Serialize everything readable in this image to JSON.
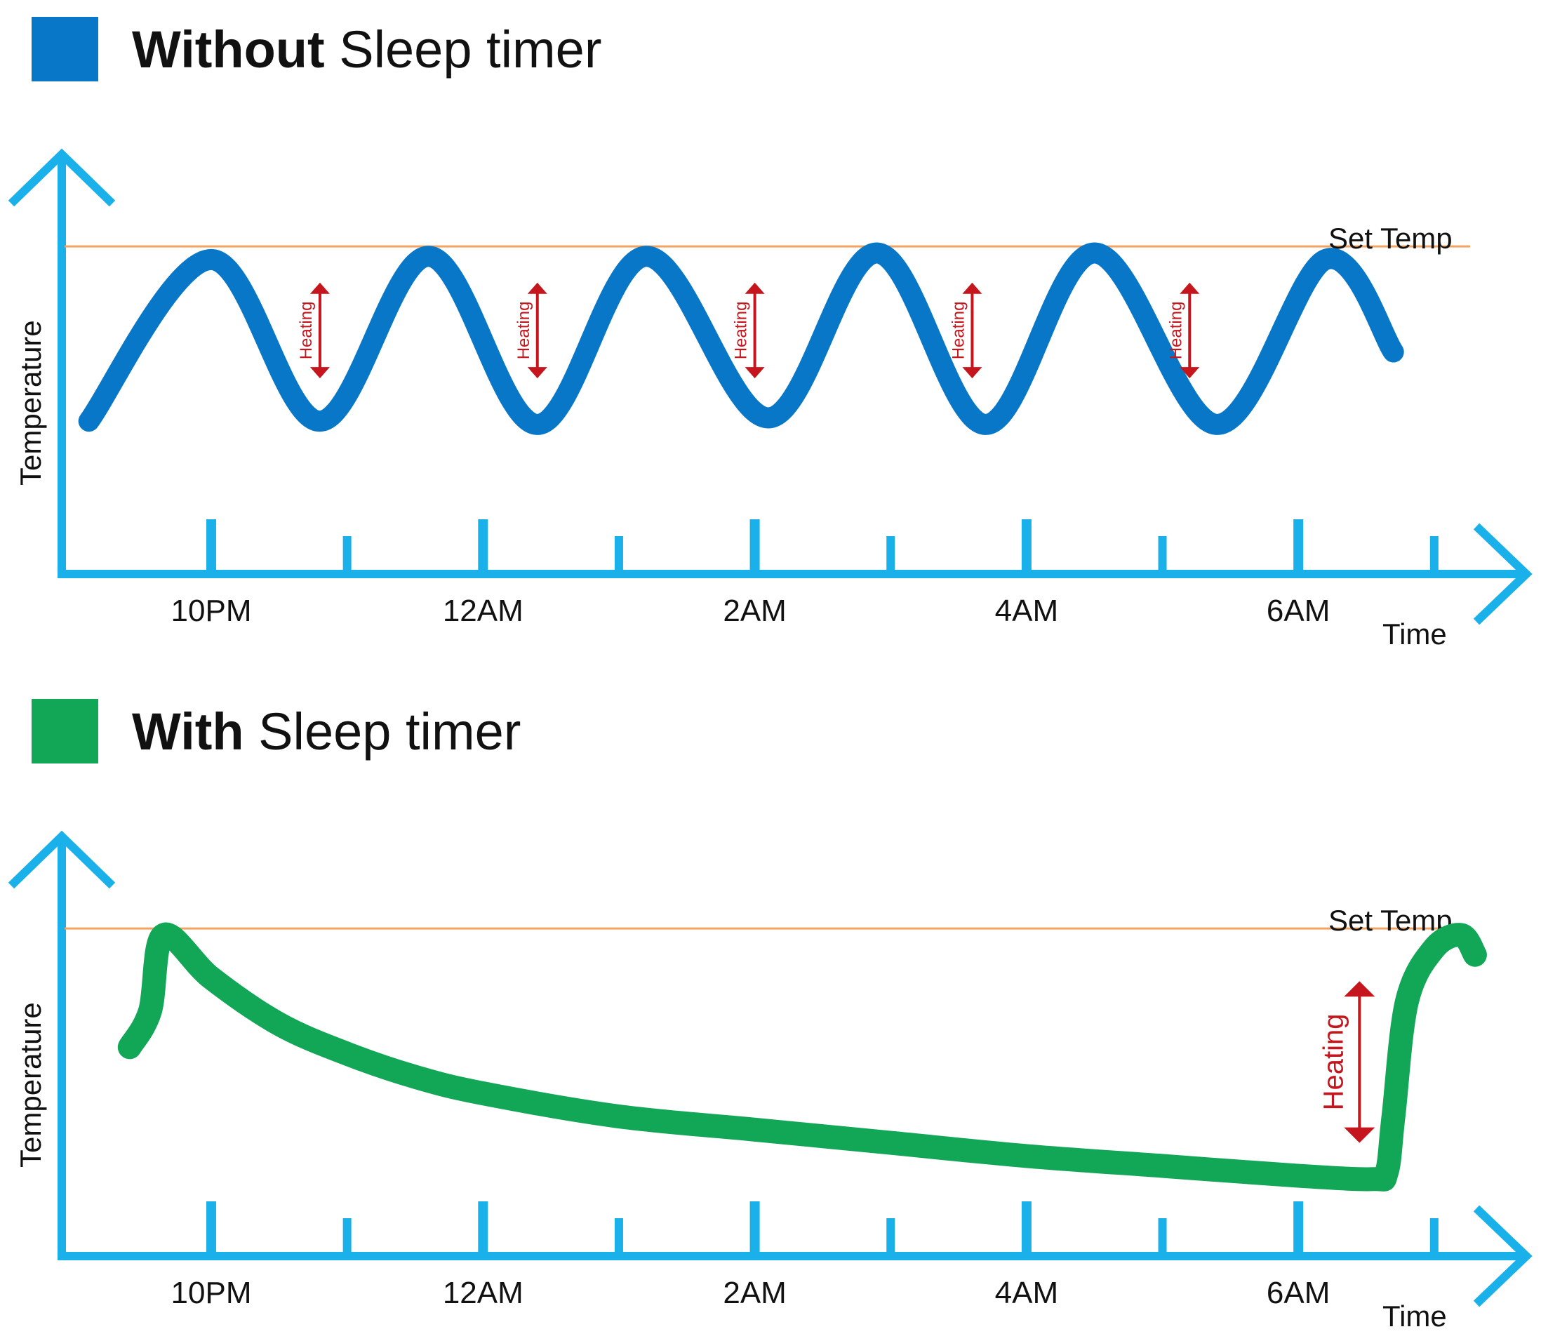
{
  "colors": {
    "axis": "#1ab0ea",
    "set_temp_line": "#f4a460",
    "without_series": "#0877c8",
    "with_series": "#12a657",
    "heating_arrow": "#c4161c",
    "text": "#111111"
  },
  "chart_data": [
    {
      "type": "line",
      "legend_color": "#0877c8",
      "title_bold": "Without",
      "title_rest": " Sleep timer",
      "xlabel": "Time",
      "ylabel": "Temperature",
      "x_ticks": [
        "10PM",
        "12AM",
        "2AM",
        "4AM",
        "6AM"
      ],
      "x_range": [
        20.9,
        31.6
      ],
      "y_range": [
        0,
        10
      ],
      "set_temp_label": "Set Temp",
      "set_temp": 8.7,
      "series": [
        {
          "color": "#0877c8",
          "x": [
            21.1,
            22.0,
            22.8,
            23.6,
            24.4,
            25.2,
            26.1,
            26.9,
            27.7,
            28.5,
            29.4,
            30.2,
            30.7
          ],
          "y": [
            3.4,
            8.3,
            3.4,
            8.4,
            3.3,
            8.4,
            3.5,
            8.5,
            3.3,
            8.5,
            3.3,
            8.3,
            5.5
          ]
        }
      ],
      "annotations": [
        {
          "label": "Heating",
          "x": 22.8
        },
        {
          "label": "Heating",
          "x": 24.4
        },
        {
          "label": "Heating",
          "x": 26.0
        },
        {
          "label": "Heating",
          "x": 27.6
        },
        {
          "label": "Heating",
          "x": 29.2
        }
      ]
    },
    {
      "type": "line",
      "legend_color": "#12a657",
      "title_bold": "With",
      "title_rest": " Sleep timer",
      "xlabel": "Time",
      "ylabel": "Temperature",
      "x_ticks": [
        "10PM",
        "12AM",
        "2AM",
        "4AM",
        "6AM"
      ],
      "x_range": [
        20.9,
        31.6
      ],
      "y_range": [
        0,
        10
      ],
      "set_temp_label": "Set Temp",
      "set_temp": 8.7,
      "series": [
        {
          "color": "#12a657",
          "x": [
            21.4,
            21.55,
            21.65,
            22.0,
            22.5,
            23.0,
            23.5,
            24.0,
            25.0,
            26.0,
            27.0,
            28.0,
            29.0,
            30.0,
            30.55,
            30.65,
            30.7,
            30.8,
            31.0,
            31.2,
            31.3
          ],
          "y": [
            5.1,
            6.2,
            8.5,
            7.2,
            5.8,
            4.9,
            4.2,
            3.7,
            3.0,
            2.6,
            2.2,
            1.8,
            1.5,
            1.2,
            1.1,
            1.3,
            3.0,
            6.5,
            8.1,
            8.5,
            7.9
          ]
        }
      ],
      "annotations": [
        {
          "label": "Heating",
          "x": 30.45
        }
      ]
    }
  ]
}
